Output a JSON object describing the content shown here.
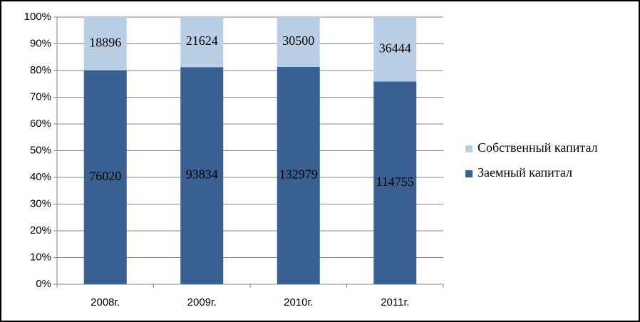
{
  "chart_data": {
    "type": "bar",
    "stacking": "percent",
    "categories": [
      "2008г.",
      "2009г.",
      "2010г.",
      "2011г."
    ],
    "series": [
      {
        "name": "Заемный капитал",
        "color": "#3a5f91",
        "values": [
          76020,
          93834,
          132979,
          114755
        ]
      },
      {
        "name": "Собственный капитал",
        "color": "#b9cde5",
        "values": [
          18896,
          21624,
          30500,
          36444
        ]
      }
    ],
    "ylim": [
      0,
      100
    ],
    "yticks": [
      {
        "value": 0,
        "label": "0%"
      },
      {
        "value": 10,
        "label": "10%"
      },
      {
        "value": 20,
        "label": "20%"
      },
      {
        "value": 30,
        "label": "30%"
      },
      {
        "value": 40,
        "label": "40%"
      },
      {
        "value": 50,
        "label": "50%"
      },
      {
        "value": 60,
        "label": "60%"
      },
      {
        "value": 70,
        "label": "70%"
      },
      {
        "value": 80,
        "label": "80%"
      },
      {
        "value": 90,
        "label": "90%"
      },
      {
        "value": 100,
        "label": "100%"
      }
    ],
    "grid": true,
    "legend": "right"
  }
}
